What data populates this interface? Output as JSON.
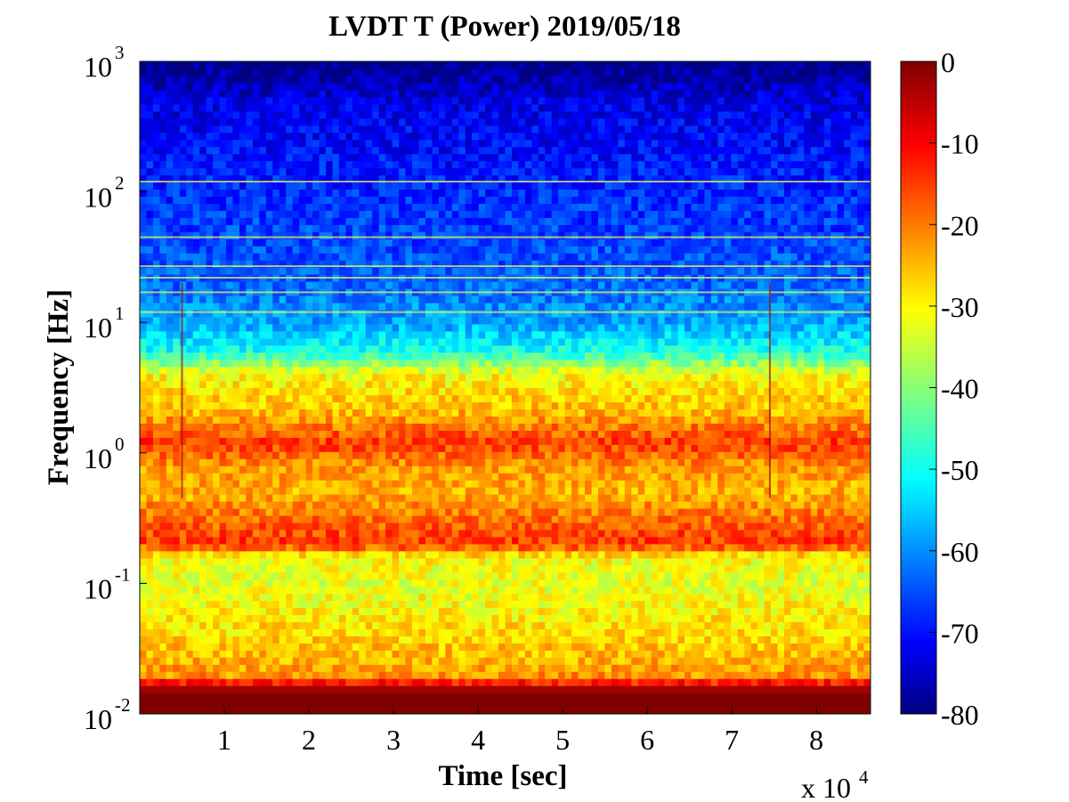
{
  "chart_data": {
    "type": "heatmap",
    "title": "LVDT T (Power) 2019/05/18",
    "xlabel": "Time [sec]",
    "ylabel": "Frequency [Hz]",
    "x_multiplier": "x 10",
    "x_multiplier_exponent": "4",
    "xlim": [
      0,
      86400
    ],
    "ylim": [
      0.01,
      1000
    ],
    "yscale": "log",
    "x_ticks": [
      10000,
      20000,
      30000,
      40000,
      50000,
      60000,
      70000,
      80000
    ],
    "x_tick_labels": [
      "1",
      "2",
      "3",
      "4",
      "5",
      "6",
      "7",
      "8"
    ],
    "y_ticks": [
      {
        "value": 0.01,
        "base": "10",
        "exp": "-2"
      },
      {
        "value": 0.1,
        "base": "10",
        "exp": "-1"
      },
      {
        "value": 1,
        "base": "10",
        "exp": "0"
      },
      {
        "value": 10,
        "base": "10",
        "exp": "1"
      },
      {
        "value": 100,
        "base": "10",
        "exp": "2"
      },
      {
        "value": 1000,
        "base": "10",
        "exp": "3"
      }
    ],
    "colorbar": {
      "colormap": "jet",
      "clim": [
        -80,
        0
      ],
      "ticks": [
        0,
        -10,
        -20,
        -30,
        -40,
        -50,
        -60,
        -70,
        -80
      ],
      "tick_labels": [
        "0",
        "-10",
        "-20",
        "-30",
        "-40",
        "-50",
        "-60",
        "-70",
        "-80"
      ]
    },
    "power_profile_db": [
      {
        "freq": 0.01,
        "db": 0
      },
      {
        "freq": 0.015,
        "db": 0
      },
      {
        "freq": 0.02,
        "db": -22
      },
      {
        "freq": 0.04,
        "db": -27
      },
      {
        "freq": 0.1,
        "db": -32
      },
      {
        "freq": 0.16,
        "db": -30
      },
      {
        "freq": 0.2,
        "db": -14
      },
      {
        "freq": 0.3,
        "db": -18
      },
      {
        "freq": 0.5,
        "db": -24
      },
      {
        "freq": 0.8,
        "db": -22
      },
      {
        "freq": 1.2,
        "db": -14
      },
      {
        "freq": 2,
        "db": -24
      },
      {
        "freq": 4,
        "db": -30
      },
      {
        "freq": 6,
        "db": -48
      },
      {
        "freq": 10,
        "db": -57
      },
      {
        "freq": 20,
        "db": -62
      },
      {
        "freq": 100,
        "db": -67
      },
      {
        "freq": 500,
        "db": -72
      },
      {
        "freq": 800,
        "db": -78
      },
      {
        "freq": 1000,
        "db": -80
      }
    ],
    "line_features_hz": [
      12,
      17,
      22,
      27,
      45,
      120
    ],
    "transient_times_sec": [
      5000,
      74500
    ]
  }
}
